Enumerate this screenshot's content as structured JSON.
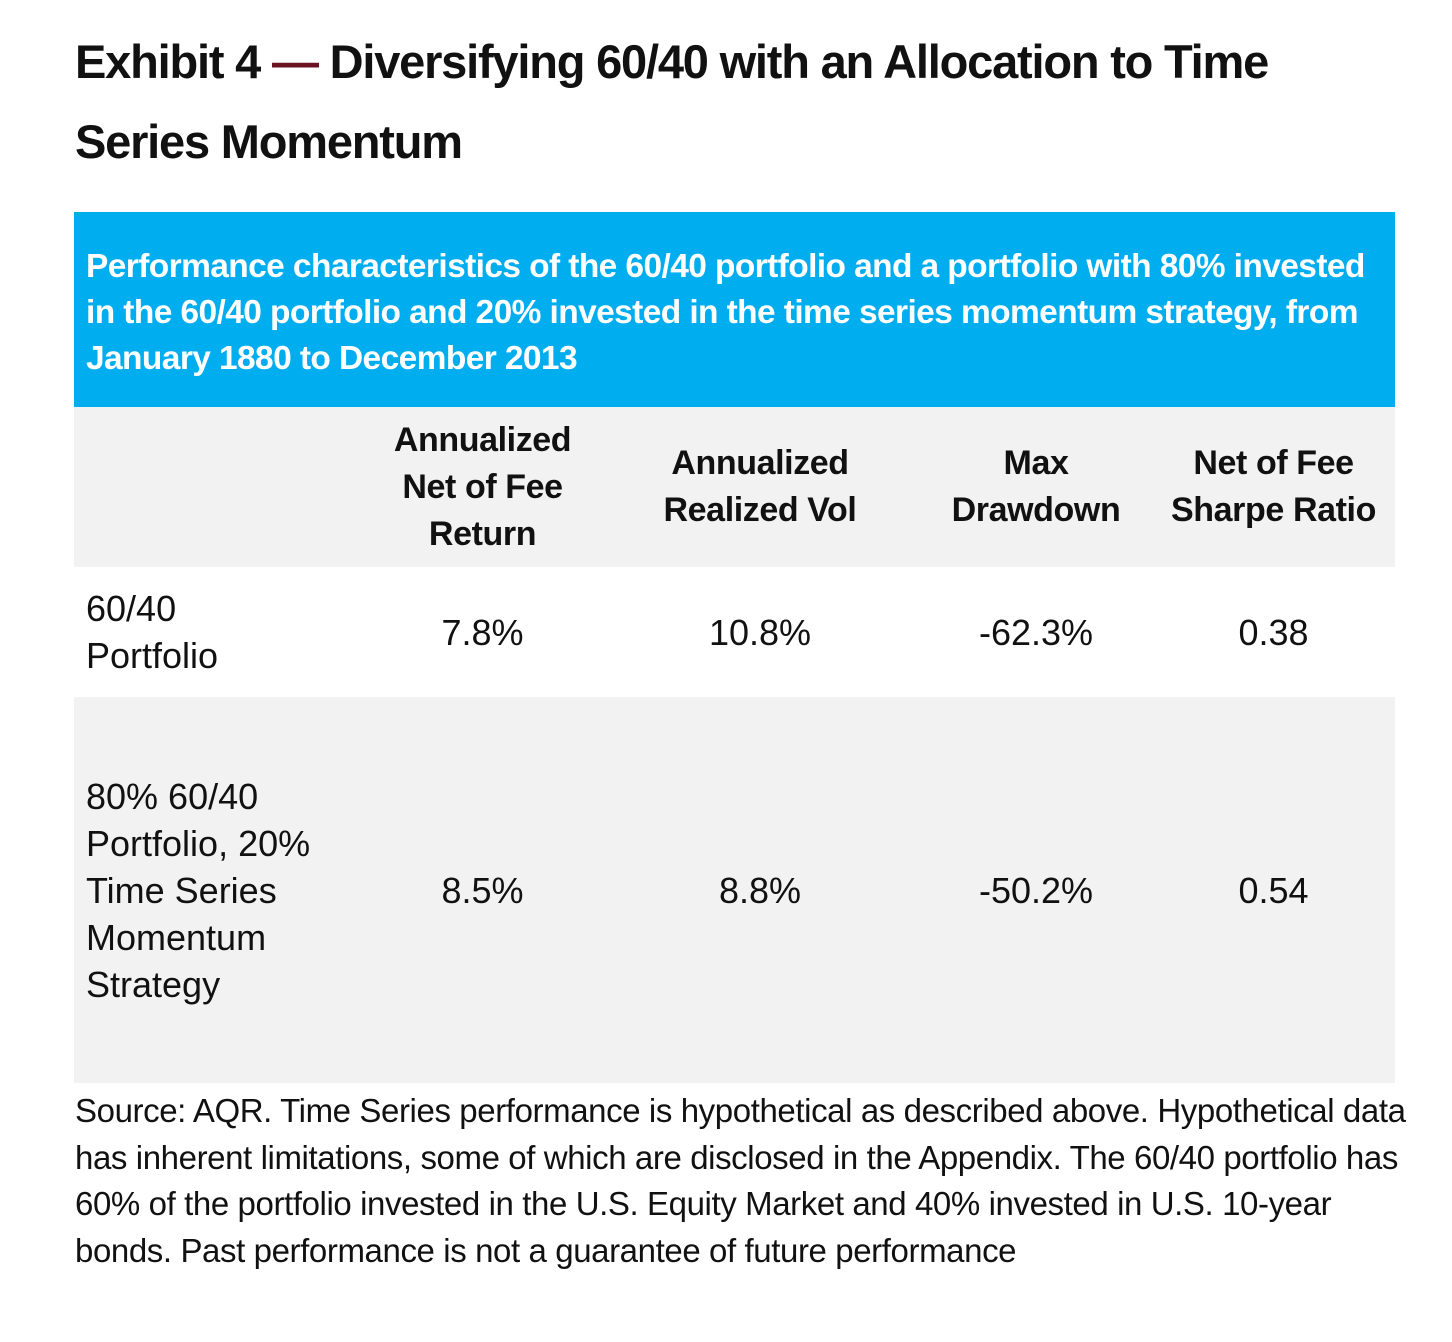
{
  "exhibit": {
    "title_part1": "Exhibit 4 ",
    "title_dash": "—",
    "title_part2": " Diversifying 60/40 with an Allocation to Time Series Momentum"
  },
  "banner": {
    "text": "Performance characteristics of the 60/40 portfolio and a portfolio with 80% invested in the 60/40 portfolio and 20% invested in the time series momentum strategy, from January 1880 to December 2013"
  },
  "table": {
    "columns": [
      "Annualized Net of Fee Return",
      "Annualized Realized Vol",
      "Max Drawdown",
      "Net of Fee Sharpe Ratio"
    ],
    "rows": [
      {
        "label": "60/40 Portfolio",
        "values": [
          "7.8%",
          "10.8%",
          "-62.3%",
          "0.38"
        ]
      },
      {
        "label": "80% 60/40 Portfolio, 20% Time Series Momentum Strategy",
        "values": [
          "8.5%",
          "8.8%",
          "-50.2%",
          "0.54"
        ]
      }
    ]
  },
  "source": {
    "text": "Source: AQR. Time Series performance is hypothetical as described above. Hypothetical data has inherent limitations, some of which are disclosed in the Appendix.  The 60/40 portfolio has 60% of the portfolio invested in the U.S. Equity Market and 40% invested in U.S. 10-year bonds. Past performance is not a guarantee of future performance"
  },
  "colors": {
    "banner_background": "#00adef",
    "banner_text": "#ffffff",
    "title_dash": "#6b1320",
    "shaded_row": "#f2f2f2"
  }
}
